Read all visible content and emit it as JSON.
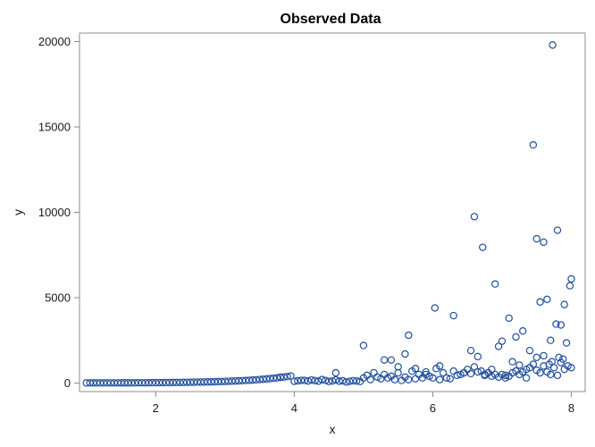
{
  "chart_data": {
    "type": "scatter",
    "title": "Observed Data",
    "xlabel": "x",
    "ylabel": "y",
    "xlim": [
      0.9,
      8.2
    ],
    "ylim": [
      -500,
      20500
    ],
    "xticks": [
      2,
      4,
      6,
      8
    ],
    "yticks": [
      0,
      5000,
      10000,
      15000,
      20000
    ],
    "xtick_labels": [
      "2",
      "4",
      "6",
      "8"
    ],
    "ytick_labels": [
      "0",
      "5000",
      "10000",
      "15000",
      "20000"
    ],
    "grid": false,
    "legend": "none",
    "marker_color": "#1f4e9c",
    "frame_color": "#8c8c8c",
    "series": [
      {
        "x": [
          1.0,
          1.05,
          1.1,
          1.15,
          1.2,
          1.25,
          1.3,
          1.35,
          1.4,
          1.45,
          1.5,
          1.55,
          1.6,
          1.65,
          1.7,
          1.75,
          1.8,
          1.85,
          1.9,
          1.95,
          2.0,
          2.05,
          2.1,
          2.15,
          2.2,
          2.25,
          2.3,
          2.35,
          2.4,
          2.45,
          2.5,
          2.55,
          2.6,
          2.65,
          2.7,
          2.75,
          2.8,
          2.85,
          2.9,
          2.95,
          3.0,
          3.05,
          3.1,
          3.15,
          3.2,
          3.25,
          3.3,
          3.35,
          3.4,
          3.45,
          3.5,
          3.55,
          3.6,
          3.65,
          3.7,
          3.75,
          3.8,
          3.85,
          3.9,
          3.95,
          4.0,
          4.05,
          4.1,
          4.15,
          4.2,
          4.25,
          4.3,
          4.35,
          4.4,
          4.45,
          4.5,
          4.55,
          4.6,
          4.65,
          4.7,
          4.75,
          4.8,
          4.85,
          4.9,
          4.95,
          5.0,
          5.05,
          5.1,
          5.15,
          5.2,
          5.25,
          5.3,
          5.35,
          5.4,
          5.45,
          5.5,
          5.55,
          5.6,
          5.65,
          5.7,
          5.75,
          5.8,
          5.85,
          5.9,
          5.95,
          6.0,
          6.05,
          6.1,
          6.15,
          6.2,
          6.25,
          6.3,
          6.35,
          6.4,
          6.45,
          6.5,
          6.55,
          6.6,
          6.65,
          6.7,
          6.75,
          6.8,
          6.85,
          6.9,
          6.95,
          7.0,
          7.05,
          7.1,
          7.15,
          7.2,
          7.25,
          7.3,
          7.35,
          7.4,
          7.45,
          7.5,
          7.55,
          7.6,
          7.65,
          7.7,
          7.75,
          7.8,
          7.85,
          7.9,
          7.95,
          8.0,
          3.8,
          4.6,
          5.0,
          5.4,
          5.6,
          5.65,
          5.75,
          6.03,
          6.3,
          6.6,
          6.65,
          6.72,
          6.9,
          6.95,
          7.0,
          7.1,
          7.15,
          7.2,
          7.3,
          7.4,
          7.45,
          7.5,
          7.55,
          7.6,
          7.65,
          7.7,
          7.73,
          7.78,
          7.8,
          7.85,
          7.9,
          7.93,
          7.98,
          8.0,
          5.3,
          5.5,
          5.9,
          6.1,
          6.45,
          6.55,
          6.75,
          6.85,
          7.05,
          7.25,
          7.35,
          7.5,
          7.6,
          7.68,
          7.72,
          7.82,
          7.88
        ],
        "y": [
          5,
          5,
          5,
          6,
          6,
          7,
          7,
          8,
          8,
          9,
          10,
          10,
          11,
          12,
          13,
          14,
          15,
          16,
          17,
          19,
          20,
          22,
          24,
          26,
          28,
          30,
          32,
          35,
          38,
          41,
          44,
          48,
          52,
          56,
          60,
          65,
          70,
          76,
          82,
          88,
          95,
          100,
          110,
          120,
          130,
          140,
          150,
          160,
          175,
          190,
          205,
          220,
          240,
          260,
          280,
          300,
          330,
          350,
          380,
          410,
          100,
          130,
          160,
          150,
          120,
          180,
          140,
          110,
          200,
          150,
          90,
          120,
          180,
          110,
          130,
          60,
          100,
          140,
          120,
          90,
          300,
          450,
          200,
          600,
          350,
          250,
          500,
          300,
          400,
          200,
          600,
          150,
          350,
          200,
          700,
          250,
          500,
          300,
          650,
          400,
          300,
          850,
          200,
          600,
          300,
          250,
          700,
          450,
          500,
          600,
          800,
          550,
          950,
          650,
          700,
          500,
          600,
          400,
          500,
          350,
          500,
          450,
          400,
          600,
          700,
          500,
          650,
          800,
          900,
          1100,
          750,
          600,
          1000,
          650,
          500,
          900,
          450,
          1200,
          800,
          1000,
          900,
          350,
          600,
          2200,
          1350,
          1700,
          2800,
          850,
          4400,
          3950,
          9750,
          1550,
          7950,
          5800,
          2150,
          2450,
          3800,
          1250,
          2700,
          3050,
          1900,
          13950,
          8450,
          4750,
          8250,
          4900,
          2500,
          19800,
          3450,
          8950,
          3400,
          4600,
          2350,
          5700,
          6100,
          1350,
          950,
          500,
          1000,
          600,
          1900,
          450,
          800,
          300,
          1050,
          300,
          1500,
          1600,
          1100,
          1250,
          1500,
          1400
        ]
      }
    ]
  }
}
